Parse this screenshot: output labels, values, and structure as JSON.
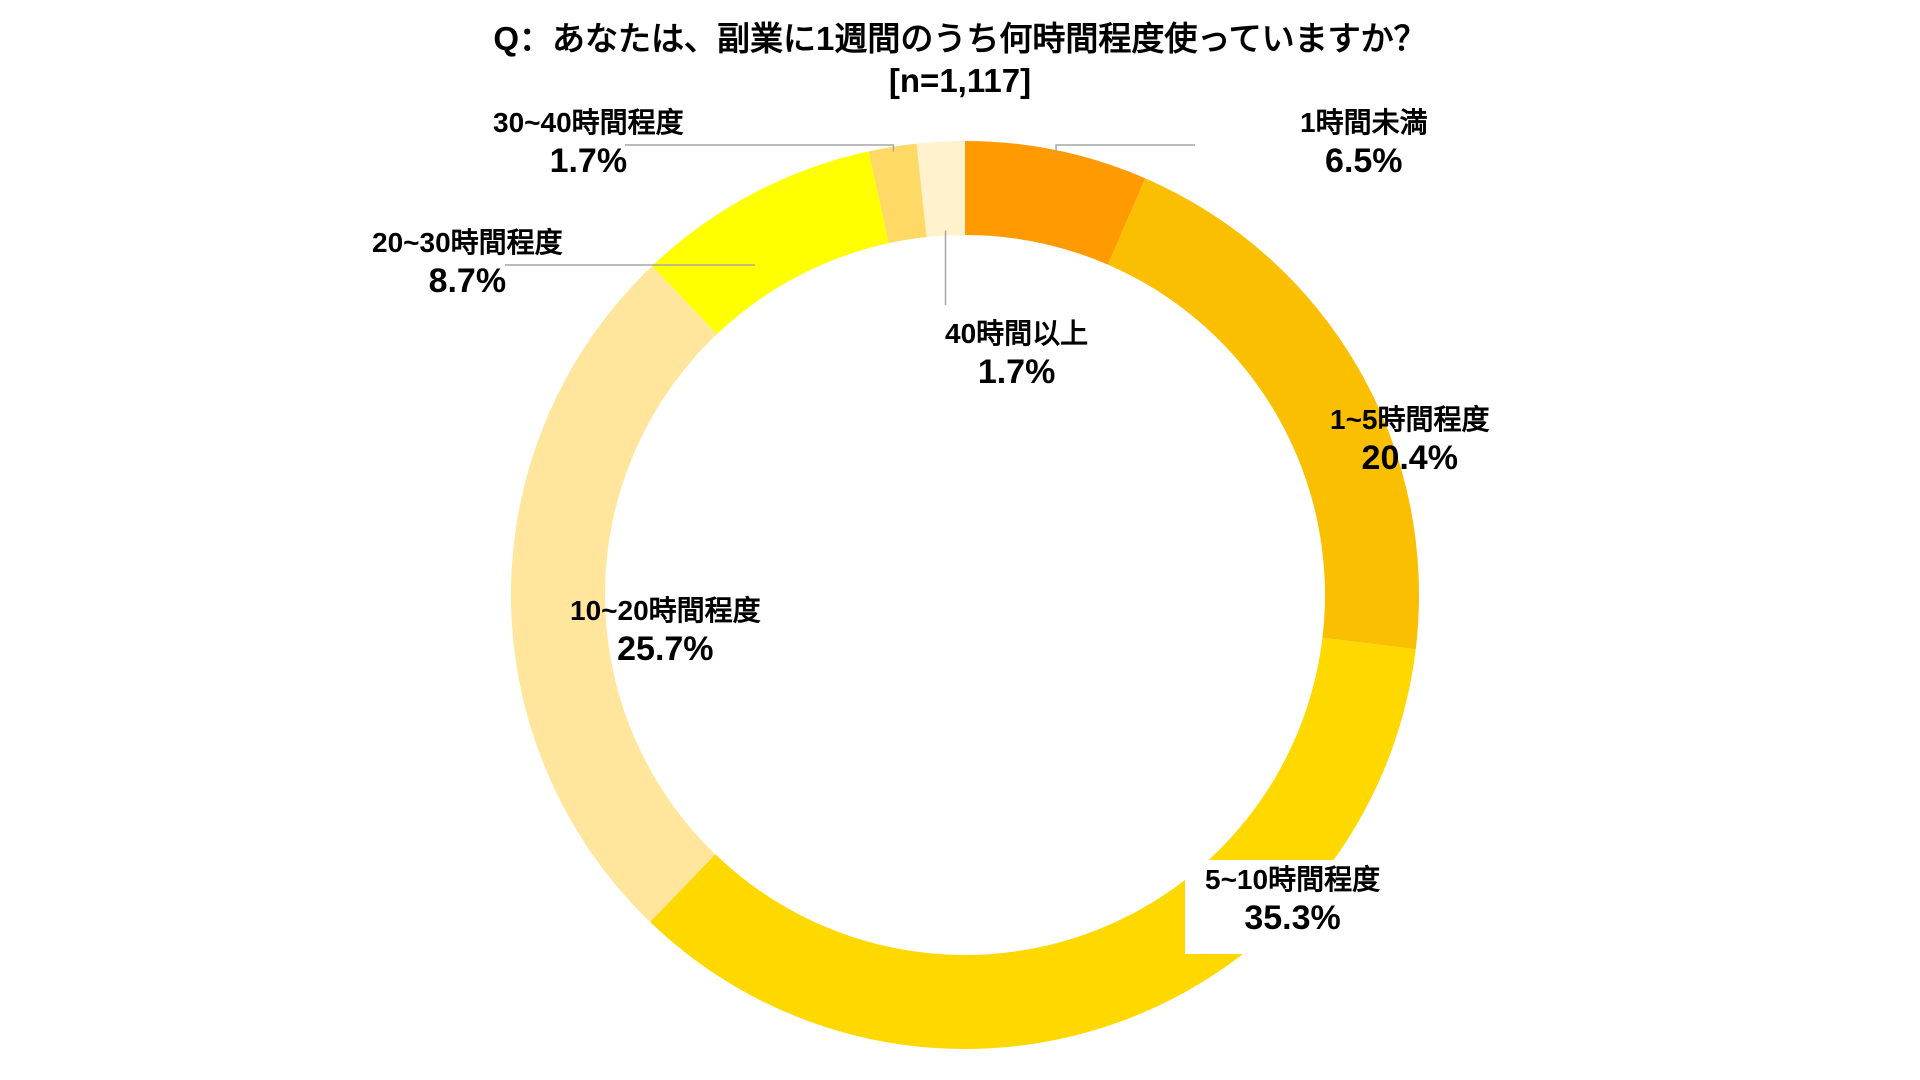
{
  "chart_data": {
    "type": "pie",
    "variant": "donut",
    "title": "Q：あなたは、副業に1週間のうち何時間程度使っていますか？",
    "subtitle": "[n=1,117]",
    "categories": [
      "1時間未満",
      "1~5時間程度",
      "5~10時間程度",
      "10~20時間程度",
      "20~30時間程度",
      "30~40時間程度",
      "40時間以上"
    ],
    "values": [
      6.5,
      20.4,
      35.3,
      25.7,
      8.7,
      1.7,
      1.7
    ],
    "value_labels": [
      "6.5%",
      "20.4%",
      "35.3%",
      "25.7%",
      "8.7%",
      "1.7%",
      "1.7%"
    ],
    "colors": [
      "#FF9A00",
      "#FABF00",
      "#FFD800",
      "#FFE69C",
      "#FFFF00",
      "#FFD966",
      "#FFF2CC"
    ],
    "start_angle": "12 o'clock",
    "direction": "clockwise"
  }
}
